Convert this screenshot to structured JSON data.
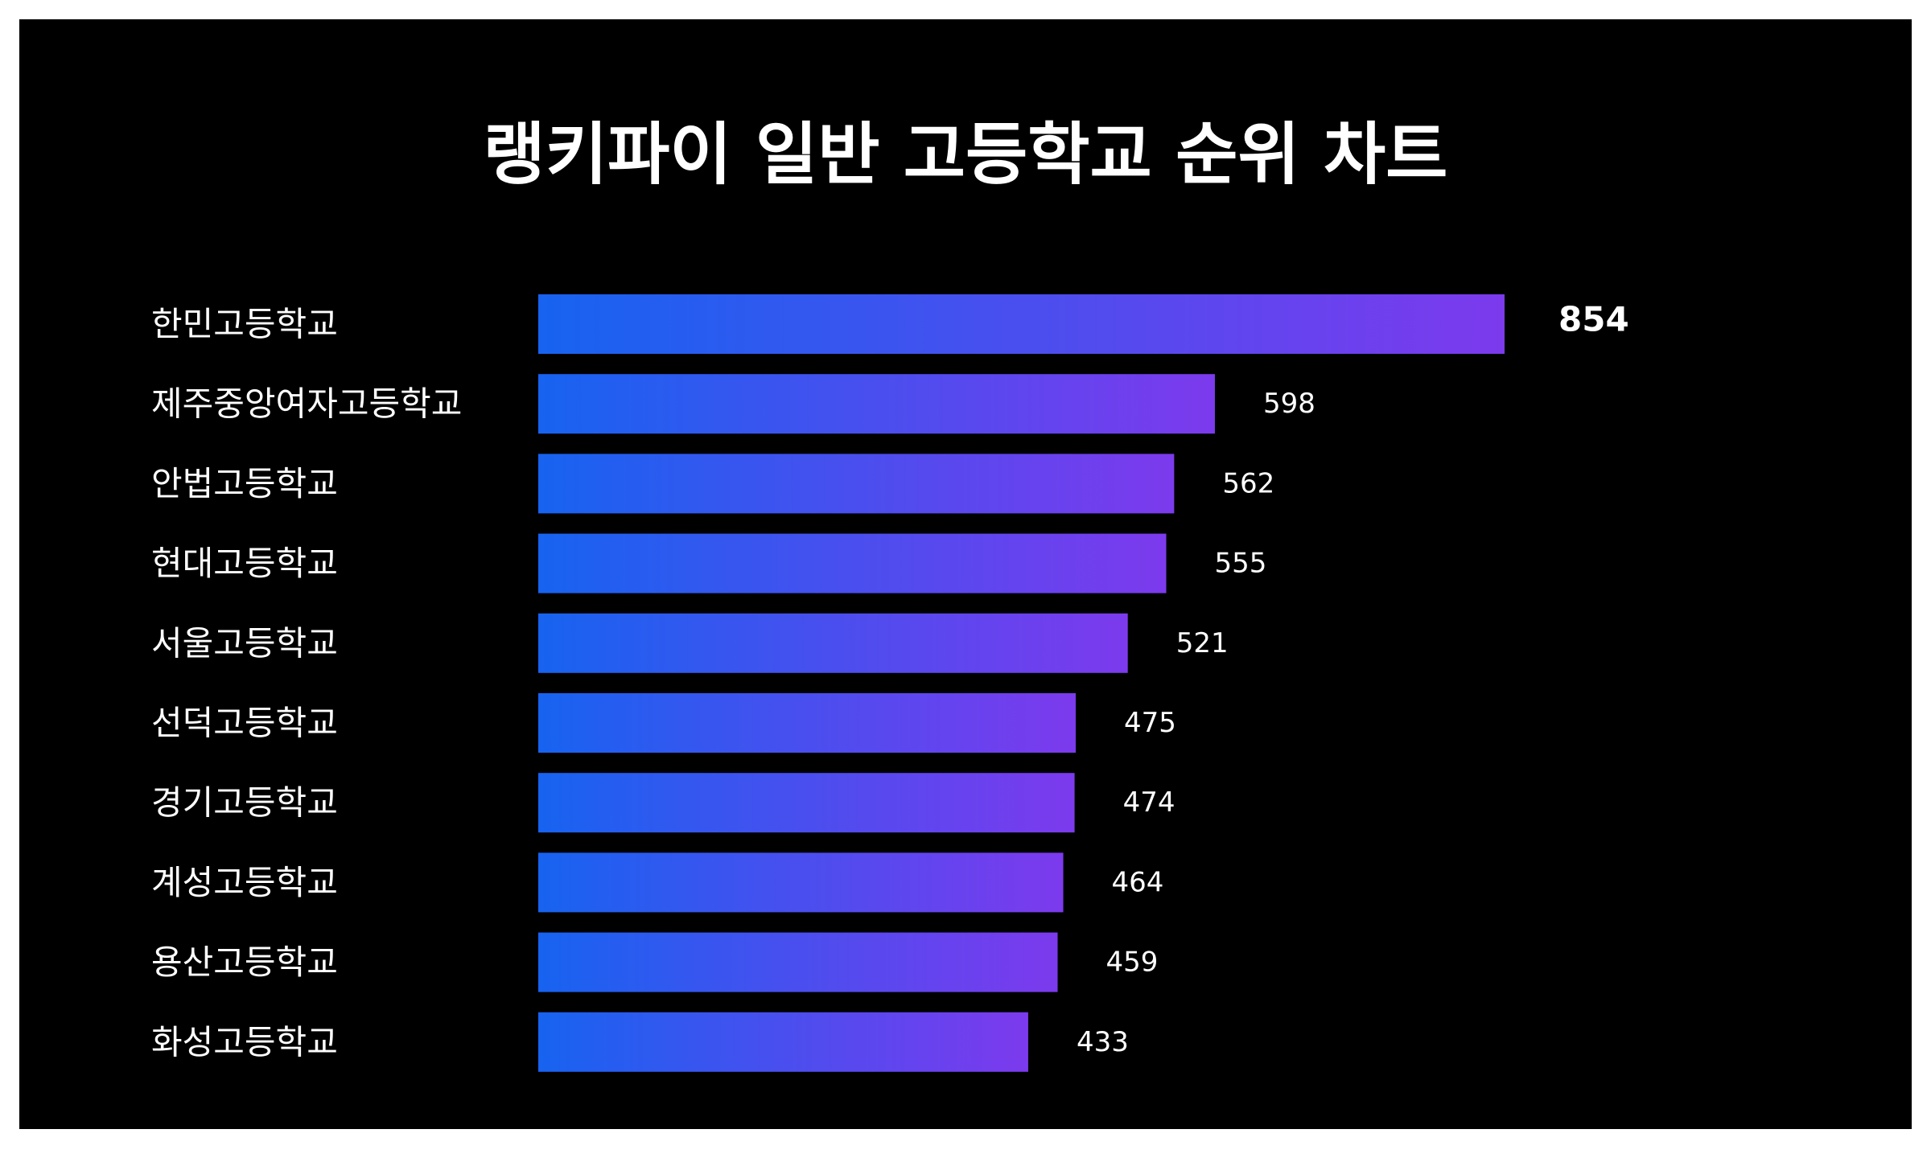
{
  "chart_data": {
    "type": "bar",
    "orientation": "horizontal",
    "title": "랭키파이 일반 고등학교 순위 차트",
    "categories": [
      "한민고등학교",
      "제주중앙여자고등학교",
      "안법고등학교",
      "현대고등학교",
      "서울고등학교",
      "선덕고등학교",
      "경기고등학교",
      "계성고등학교",
      "용산고등학교",
      "화성고등학교"
    ],
    "values": [
      854,
      598,
      562,
      555,
      521,
      475,
      474,
      464,
      459,
      433
    ],
    "xlim": [
      0,
      854
    ],
    "grid": false,
    "legend": "none",
    "colors": {
      "background": "#000000",
      "bar_gradient_start": "#1763f0",
      "bar_gradient_end": "#7c3aed",
      "text": "#ffffff"
    }
  }
}
